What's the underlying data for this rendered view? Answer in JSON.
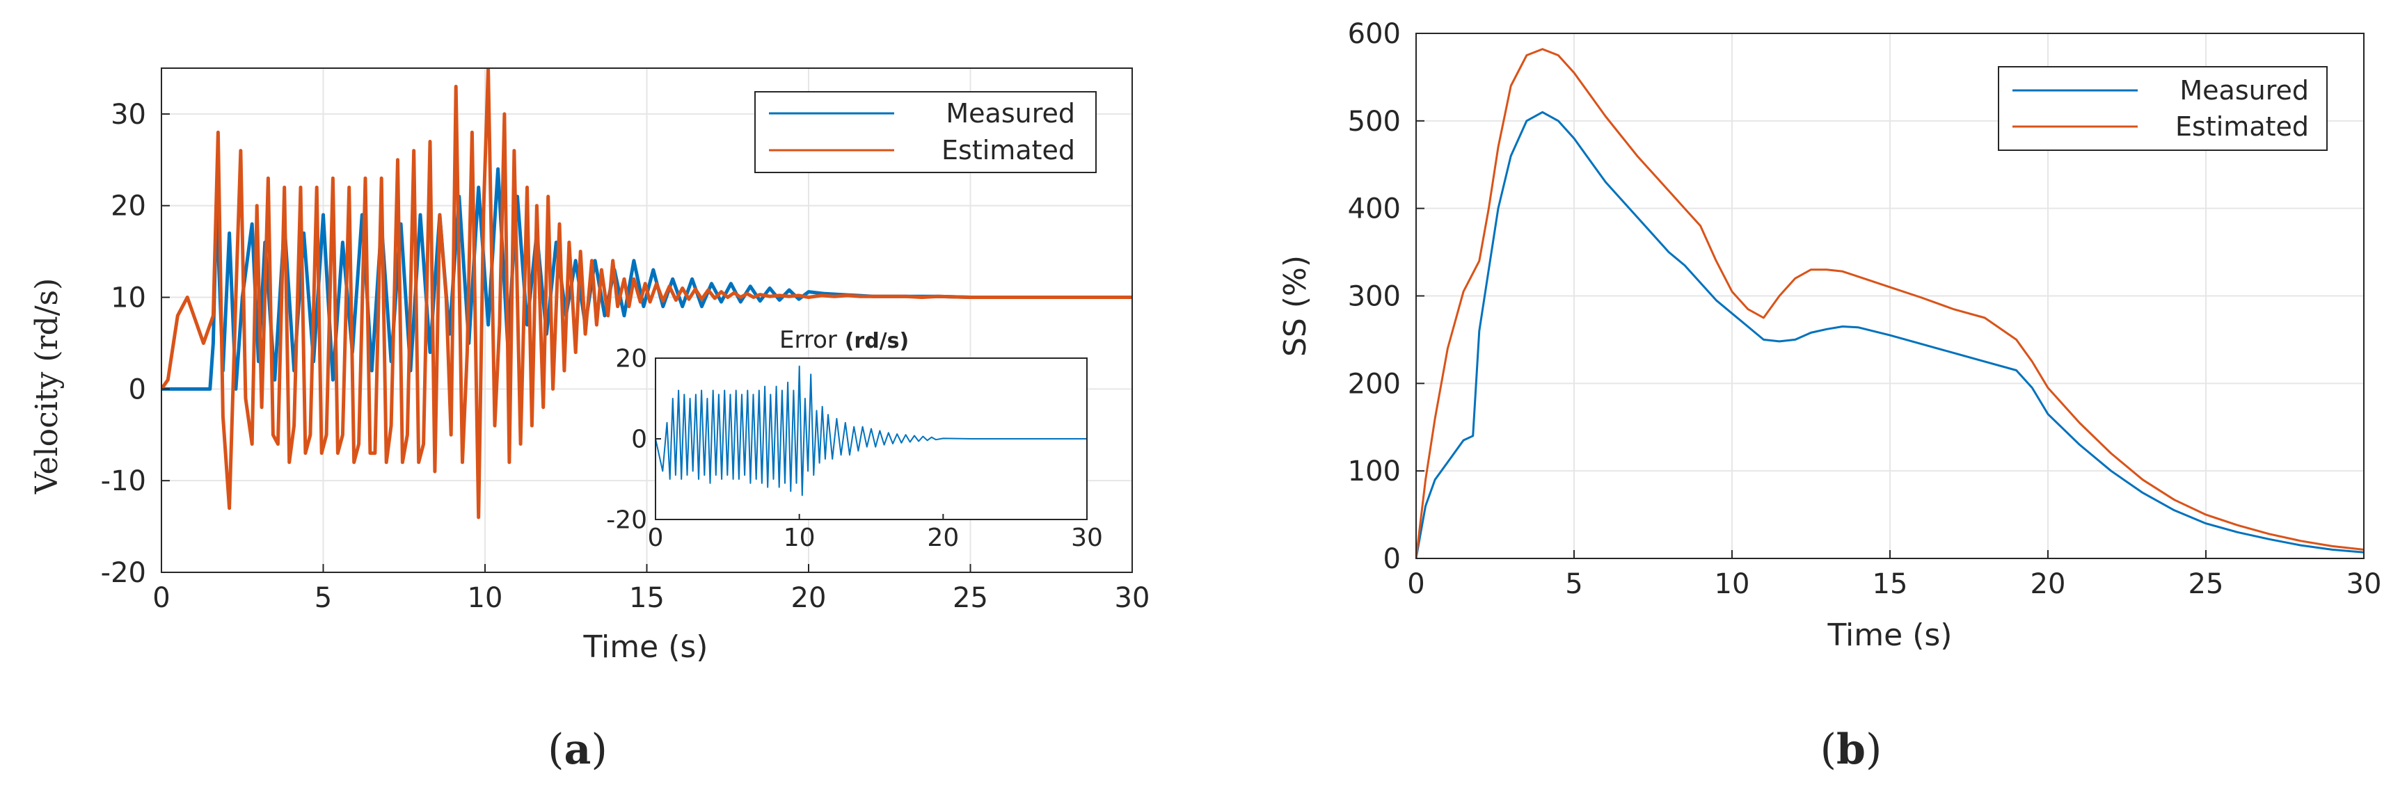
{
  "colors": {
    "measured": "#0072BD",
    "estimated": "#D95319",
    "grid": "#e6e6e6",
    "axis": "#262626"
  },
  "captions": {
    "a": {
      "open": "(",
      "letter": "a",
      "close": ")"
    },
    "b": {
      "open": "(",
      "letter": "b",
      "close": ")"
    }
  },
  "chart_data": [
    {
      "id": "a",
      "type": "line",
      "xlabel": "Time  (s)",
      "ylabel": "Velocity (rd/s)",
      "xlim": [
        0,
        30
      ],
      "ylim": [
        -20,
        35
      ],
      "xticks": [
        0,
        5,
        10,
        15,
        20,
        25,
        30
      ],
      "yticks": [
        -20,
        -10,
        0,
        10,
        20,
        30
      ],
      "grid": true,
      "legend": {
        "position": "top-right",
        "entries": [
          "Measured",
          "Estimated"
        ]
      },
      "series": [
        {
          "name": "Measured",
          "x": [
            0,
            1.5,
            1.6,
            1.7,
            1.9,
            2.1,
            2.3,
            2.5,
            2.8,
            3.0,
            3.2,
            3.5,
            3.8,
            4.1,
            4.4,
            4.7,
            5.0,
            5.3,
            5.6,
            5.9,
            6.2,
            6.5,
            6.8,
            7.1,
            7.4,
            7.7,
            8.0,
            8.3,
            8.6,
            8.9,
            9.2,
            9.5,
            9.8,
            10.1,
            10.4,
            10.7,
            11.0,
            11.3,
            11.6,
            11.9,
            12.2,
            12.5,
            12.8,
            13.1,
            13.4,
            13.7,
            14.0,
            14.3,
            14.6,
            14.9,
            15.2,
            15.5,
            15.8,
            16.1,
            16.4,
            16.7,
            17.0,
            17.3,
            17.6,
            17.9,
            18.2,
            18.5,
            18.8,
            19.1,
            19.4,
            19.7,
            20.0,
            20.5,
            21.0,
            21.5,
            22.0,
            23.0,
            24.0,
            25.0,
            26.0,
            28.0,
            30.0
          ],
          "y": [
            0,
            0,
            5,
            20,
            2,
            17,
            0,
            10,
            18,
            3,
            16,
            1,
            18,
            2,
            17,
            3,
            19,
            1,
            16,
            4,
            19,
            2,
            18,
            3,
            18,
            2,
            19,
            4,
            19,
            6,
            21,
            5,
            22,
            7,
            24,
            5,
            21,
            7,
            17,
            6,
            16,
            8,
            14,
            7,
            14,
            8,
            13,
            8,
            14,
            9,
            13,
            9,
            12,
            9,
            12,
            9,
            11.5,
            9.5,
            11.5,
            9.5,
            11.2,
            9.6,
            11,
            9.7,
            10.8,
            9.8,
            10.6,
            10.4,
            10.3,
            10.2,
            10.1,
            10.1,
            10.1,
            10,
            10,
            10,
            10
          ]
        },
        {
          "name": "Estimated",
          "x": [
            0,
            0.2,
            0.5,
            0.8,
            1.0,
            1.3,
            1.6,
            1.75,
            1.9,
            2.1,
            2.3,
            2.45,
            2.6,
            2.8,
            2.95,
            3.1,
            3.3,
            3.45,
            3.6,
            3.8,
            3.95,
            4.1,
            4.3,
            4.45,
            4.6,
            4.8,
            4.95,
            5.1,
            5.3,
            5.45,
            5.6,
            5.8,
            5.95,
            6.1,
            6.3,
            6.45,
            6.6,
            6.8,
            6.95,
            7.1,
            7.3,
            7.45,
            7.6,
            7.8,
            7.95,
            8.1,
            8.3,
            8.45,
            8.6,
            8.8,
            8.95,
            9.1,
            9.3,
            9.45,
            9.6,
            9.8,
            9.95,
            10.1,
            10.3,
            10.45,
            10.6,
            10.75,
            10.9,
            11.1,
            11.3,
            11.45,
            11.6,
            11.8,
            11.95,
            12.1,
            12.3,
            12.45,
            12.6,
            12.8,
            12.95,
            13.1,
            13.3,
            13.45,
            13.6,
            13.8,
            13.95,
            14.1,
            14.3,
            14.45,
            14.6,
            14.8,
            14.95,
            15.1,
            15.3,
            15.5,
            15.7,
            15.9,
            16.1,
            16.3,
            16.5,
            16.7,
            16.9,
            17.1,
            17.3,
            17.5,
            17.7,
            17.9,
            18.1,
            18.3,
            18.5,
            18.8,
            19.1,
            19.4,
            19.7,
            20.0,
            20.4,
            20.8,
            21.2,
            21.6,
            22.0,
            22.5,
            23.0,
            23.5,
            24.0,
            25.0,
            26.0,
            28.0,
            30.0
          ],
          "y": [
            0,
            1,
            8,
            10,
            8,
            5,
            8,
            28,
            -3,
            -13,
            10,
            26,
            -1,
            -6,
            20,
            -2,
            23,
            -5,
            -6,
            22,
            -8,
            -4,
            22,
            -7,
            -5,
            22,
            -7,
            -5,
            23,
            -7,
            -5,
            22,
            -8,
            -6,
            23,
            -7,
            -7,
            23,
            -8,
            -4,
            25,
            -8,
            -5,
            26,
            -8,
            -6,
            27,
            -9,
            19,
            10,
            -5,
            33,
            -8,
            4,
            28,
            -14,
            19,
            35,
            -4,
            7,
            30,
            -8,
            26,
            -6,
            22,
            -4,
            20,
            -2,
            21,
            0,
            18,
            2,
            16,
            4,
            15,
            6,
            14,
            7,
            13,
            8,
            14,
            9,
            12,
            9,
            12,
            9.5,
            11.5,
            9.5,
            11.5,
            9.6,
            11.2,
            9.7,
            11,
            9.8,
            10.9,
            9.8,
            10.8,
            9.9,
            10.6,
            10,
            10.5,
            10,
            10.4,
            10,
            10.3,
            10.1,
            10.2,
            10.1,
            10.2,
            10,
            10.2,
            10.1,
            10.2,
            10.1,
            10.1,
            10.1,
            10.1,
            10,
            10.1,
            10,
            10,
            10,
            10
          ]
        }
      ],
      "inset": {
        "title_prefix": "Error ",
        "title_unit": "(rd/s)",
        "xlim": [
          0,
          30
        ],
        "ylim": [
          -20,
          20
        ],
        "xticks": [
          0,
          10,
          20,
          30
        ],
        "yticks": [
          -20,
          0,
          20
        ],
        "series": [
          {
            "name": "Error",
            "x": [
              0,
              0.5,
              0.8,
              1.0,
              1.2,
              1.4,
              1.6,
              1.8,
              2.0,
              2.2,
              2.4,
              2.6,
              2.8,
              3.0,
              3.2,
              3.4,
              3.6,
              3.8,
              4.0,
              4.2,
              4.4,
              4.6,
              4.8,
              5.0,
              5.2,
              5.4,
              5.6,
              5.8,
              6.0,
              6.2,
              6.4,
              6.6,
              6.8,
              7.0,
              7.2,
              7.4,
              7.6,
              7.8,
              8.0,
              8.2,
              8.4,
              8.6,
              8.8,
              9.0,
              9.2,
              9.4,
              9.6,
              9.8,
              10.0,
              10.2,
              10.4,
              10.6,
              10.8,
              11.0,
              11.2,
              11.4,
              11.6,
              11.8,
              12.0,
              12.3,
              12.6,
              12.9,
              13.2,
              13.5,
              13.8,
              14.1,
              14.4,
              14.7,
              15.0,
              15.3,
              15.6,
              15.9,
              16.2,
              16.5,
              16.8,
              17.1,
              17.4,
              17.7,
              18.0,
              18.3,
              18.6,
              18.9,
              19.2,
              19.5,
              20.0,
              22.0,
              30.0
            ],
            "y": [
              0,
              -8,
              4,
              -10,
              10,
              -9,
              12,
              -10,
              11,
              -9,
              10,
              -8,
              11,
              -10,
              12,
              -9,
              10,
              -11,
              12,
              -9,
              11,
              -10,
              12,
              -9,
              11,
              -10,
              12,
              -10,
              11,
              -9,
              12,
              -11,
              11,
              -10,
              12,
              -11,
              13,
              -12,
              11,
              -10,
              13,
              -12,
              12,
              -11,
              14,
              -13,
              12,
              -11,
              18,
              -14,
              10,
              -8,
              16,
              -9,
              7,
              -6,
              8,
              -5,
              6,
              -5,
              5,
              -4,
              4,
              -4,
              3,
              -3,
              3,
              -2,
              2.5,
              -2,
              2,
              -1.5,
              1.5,
              -1.2,
              1.2,
              -1,
              1,
              -0.8,
              0.8,
              -0.6,
              0.6,
              -0.4,
              0.4,
              -0.2,
              0.1,
              0,
              0
            ]
          }
        ]
      }
    },
    {
      "id": "b",
      "type": "line",
      "xlabel": "Time  (s)",
      "ylabel": "SS (%)",
      "xlim": [
        0,
        30
      ],
      "ylim": [
        0,
        600
      ],
      "xticks": [
        0,
        5,
        10,
        15,
        20,
        25,
        30
      ],
      "yticks": [
        0,
        100,
        200,
        300,
        400,
        500,
        600
      ],
      "grid": true,
      "legend": {
        "position": "top-right",
        "entries": [
          "Measured",
          "Estimated"
        ]
      },
      "series": [
        {
          "name": "Measured",
          "x": [
            0,
            0.3,
            0.6,
            1.0,
            1.5,
            1.8,
            2.0,
            2.3,
            2.6,
            3.0,
            3.5,
            4.0,
            4.5,
            5.0,
            6.0,
            7.0,
            8.0,
            8.5,
            9.0,
            9.5,
            10.0,
            10.5,
            11.0,
            11.5,
            12.0,
            12.5,
            13.0,
            13.5,
            14.0,
            15.0,
            16.0,
            17.0,
            18.0,
            19.0,
            19.5,
            20.0,
            21.0,
            22.0,
            23.0,
            24.0,
            25.0,
            26.0,
            27.0,
            28.0,
            29.0,
            30.0
          ],
          "y": [
            0,
            60,
            90,
            110,
            135,
            140,
            260,
            330,
            400,
            460,
            500,
            510,
            500,
            480,
            430,
            390,
            350,
            335,
            315,
            295,
            280,
            265,
            250,
            248,
            250,
            258,
            262,
            265,
            264,
            255,
            245,
            235,
            225,
            215,
            195,
            165,
            130,
            100,
            75,
            55,
            40,
            30,
            22,
            15,
            10,
            7
          ]
        },
        {
          "name": "Estimated",
          "x": [
            0,
            0.3,
            0.6,
            1.0,
            1.5,
            2.0,
            2.3,
            2.6,
            3.0,
            3.5,
            4.0,
            4.5,
            5.0,
            6.0,
            7.0,
            8.0,
            8.5,
            9.0,
            9.5,
            10.0,
            10.5,
            11.0,
            11.5,
            12.0,
            12.5,
            13.0,
            13.5,
            14.0,
            15.0,
            16.0,
            17.0,
            18.0,
            19.0,
            19.5,
            20.0,
            21.0,
            22.0,
            23.0,
            24.0,
            25.0,
            26.0,
            27.0,
            28.0,
            29.0,
            30.0
          ],
          "y": [
            0,
            90,
            160,
            240,
            305,
            340,
            400,
            470,
            540,
            575,
            582,
            575,
            555,
            505,
            460,
            420,
            400,
            380,
            340,
            305,
            285,
            275,
            300,
            320,
            330,
            330,
            328,
            322,
            310,
            298,
            285,
            275,
            250,
            225,
            195,
            155,
            120,
            90,
            67,
            50,
            38,
            28,
            20,
            14,
            10
          ]
        }
      ]
    }
  ]
}
